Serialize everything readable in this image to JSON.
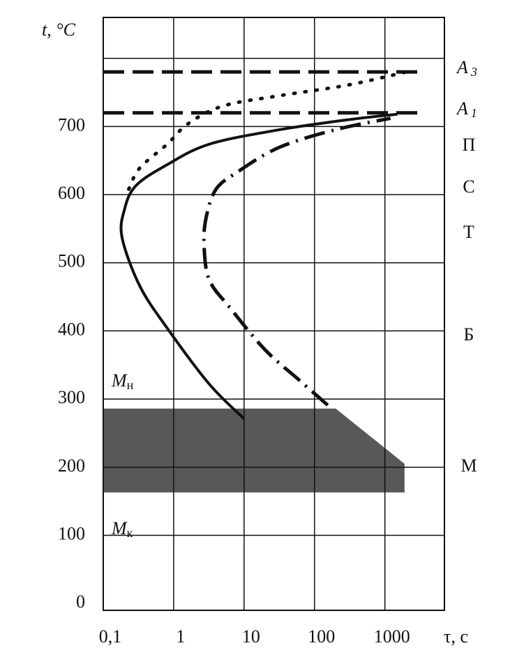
{
  "chart_data": {
    "type": "line",
    "xscale": "log",
    "ylabel": "t, °C",
    "xlabel": "τ, с",
    "xlim": [
      0.1,
      7000
    ],
    "ylim": [
      -10,
      860
    ],
    "xticks": [
      {
        "value": 0.1,
        "label": "0,1"
      },
      1,
      10,
      100,
      1000
    ],
    "yticks": [
      0,
      100,
      200,
      300,
      400,
      500,
      600,
      700
    ],
    "ygrid": [
      100,
      200,
      300,
      400,
      500,
      600,
      700,
      800
    ],
    "grid": true,
    "series": [
      {
        "label": {
          "text": "A",
          "sub": "3"
        },
        "color": "#111111",
        "style": "dashed",
        "x": [
          0.1,
          3000
        ],
        "y": [
          780,
          780
        ]
      },
      {
        "label": {
          "text": "A",
          "sub": "1"
        },
        "color": "#111111",
        "style": "dashed",
        "x": [
          0.1,
          3000
        ],
        "y": [
          720,
          720
        ]
      },
      {
        "color": "#111111",
        "style": "dotted",
        "x": [
          0.23,
          0.33,
          0.81,
          1.6,
          5,
          31,
          305,
          2400
        ],
        "y": [
          608,
          639,
          674,
          704,
          730,
          745,
          761,
          782
        ]
      },
      {
        "color": "#111111",
        "style": "solid",
        "x": [
          10,
          3.2,
          0.81,
          0.33,
          0.185,
          0.2,
          0.29,
          0.81,
          3.2,
          31,
          305,
          1500
        ],
        "y": [
          271,
          322,
          404,
          466,
          537,
          578,
          613,
          644,
          674,
          695,
          710,
          718
        ]
      },
      {
        "color": "#111111",
        "style": "dashdot",
        "x": [
          154,
          62,
          20,
          6.3,
          3.2,
          2.7,
          2.9,
          4.0,
          8.0,
          31,
          194,
          1200
        ],
        "y": [
          291,
          327,
          372,
          434,
          475,
          526,
          567,
          608,
          633,
          669,
          695,
          712
        ]
      }
    ],
    "regions": [
      {
        "color": "#4a4a4a",
        "x": [
          0.1,
          0.1,
          200,
          1900,
          1900
        ],
        "y": [
          163,
          286,
          286,
          205,
          163
        ]
      }
    ],
    "phase_labels": [
      "П",
      "С",
      "Т",
      "Б",
      "M"
    ],
    "martensite_labels": [
      {
        "text": "M",
        "sub": "н"
      },
      {
        "text": "M",
        "sub": "к"
      }
    ]
  }
}
